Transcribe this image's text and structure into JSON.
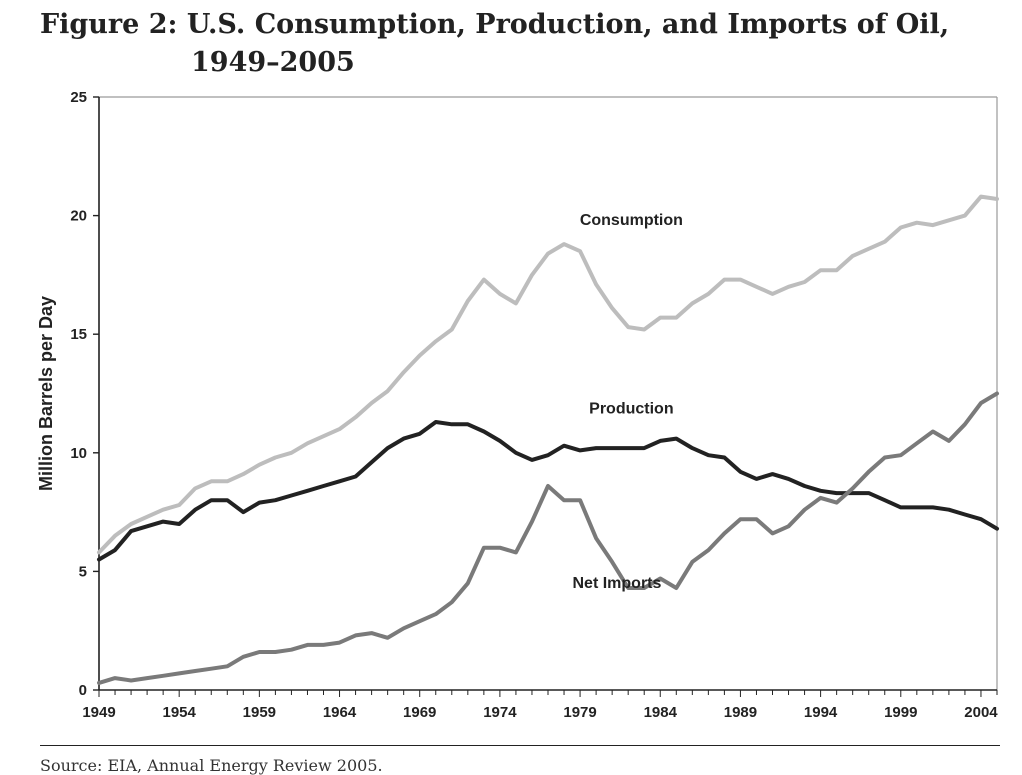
{
  "figure": {
    "title_line1": "Figure 2: U.S. Consumption, Production, and Imports of Oil,",
    "title_line2": "1949–2005",
    "source": "Source: EIA, Annual Energy Review 2005."
  },
  "chart_data": {
    "type": "line",
    "ylabel": "Million Barrels per Day",
    "xlabel": "",
    "ylim": [
      0,
      25
    ],
    "xlim": [
      1949,
      2005
    ],
    "y_ticks": [
      0,
      5,
      10,
      15,
      20,
      25
    ],
    "x_ticks": [
      1949,
      1954,
      1959,
      1964,
      1969,
      1974,
      1979,
      1984,
      1989,
      1994,
      1999,
      2004
    ],
    "grid": false,
    "x": [
      1949,
      1950,
      1951,
      1952,
      1953,
      1954,
      1955,
      1956,
      1957,
      1958,
      1959,
      1960,
      1961,
      1962,
      1963,
      1964,
      1965,
      1966,
      1967,
      1968,
      1969,
      1970,
      1971,
      1972,
      1973,
      1974,
      1975,
      1976,
      1977,
      1978,
      1979,
      1980,
      1981,
      1982,
      1983,
      1984,
      1985,
      1986,
      1987,
      1988,
      1989,
      1990,
      1991,
      1992,
      1993,
      1994,
      1995,
      1996,
      1997,
      1998,
      1999,
      2000,
      2001,
      2002,
      2003,
      2004,
      2005
    ],
    "series": [
      {
        "name": "Consumption",
        "color": "#bdbdbd",
        "values": [
          5.8,
          6.5,
          7.0,
          7.3,
          7.6,
          7.8,
          8.5,
          8.8,
          8.8,
          9.1,
          9.5,
          9.8,
          10.0,
          10.4,
          10.7,
          11.0,
          11.5,
          12.1,
          12.6,
          13.4,
          14.1,
          14.7,
          15.2,
          16.4,
          17.3,
          16.7,
          16.3,
          17.5,
          18.4,
          18.8,
          18.5,
          17.1,
          16.1,
          15.3,
          15.2,
          15.7,
          15.7,
          16.3,
          16.7,
          17.3,
          17.3,
          17.0,
          16.7,
          17.0,
          17.2,
          17.7,
          17.7,
          18.3,
          18.6,
          18.9,
          19.5,
          19.7,
          19.6,
          19.8,
          20.0,
          20.8,
          20.7
        ]
      },
      {
        "name": "Production",
        "color": "#222222",
        "values": [
          5.5,
          5.9,
          6.7,
          6.9,
          7.1,
          7.0,
          7.6,
          8.0,
          8.0,
          7.5,
          7.9,
          8.0,
          8.2,
          8.4,
          8.6,
          8.8,
          9.0,
          9.6,
          10.2,
          10.6,
          10.8,
          11.3,
          11.2,
          11.2,
          10.9,
          10.5,
          10.0,
          9.7,
          9.9,
          10.3,
          10.1,
          10.2,
          10.2,
          10.2,
          10.2,
          10.5,
          10.6,
          10.2,
          9.9,
          9.8,
          9.2,
          8.9,
          9.1,
          8.9,
          8.6,
          8.4,
          8.3,
          8.3,
          8.3,
          8.0,
          7.7,
          7.7,
          7.7,
          7.6,
          7.4,
          7.2,
          6.8
        ]
      },
      {
        "name": "Net Imports",
        "color": "#7a7a7a",
        "values": [
          0.3,
          0.5,
          0.4,
          0.5,
          0.6,
          0.7,
          0.8,
          0.9,
          1.0,
          1.4,
          1.6,
          1.6,
          1.7,
          1.9,
          1.9,
          2.0,
          2.3,
          2.4,
          2.2,
          2.6,
          2.9,
          3.2,
          3.7,
          4.5,
          6.0,
          6.0,
          5.8,
          7.1,
          8.6,
          8.0,
          8.0,
          6.4,
          5.4,
          4.3,
          4.3,
          4.7,
          4.3,
          5.4,
          5.9,
          6.6,
          7.2,
          7.2,
          6.6,
          6.9,
          7.6,
          8.1,
          7.9,
          8.5,
          9.2,
          9.8,
          9.9,
          10.4,
          10.9,
          10.5,
          11.2,
          12.1,
          12.5
        ]
      }
    ],
    "series_labels": [
      "Consumption",
      "Production",
      "Net Imports"
    ]
  }
}
